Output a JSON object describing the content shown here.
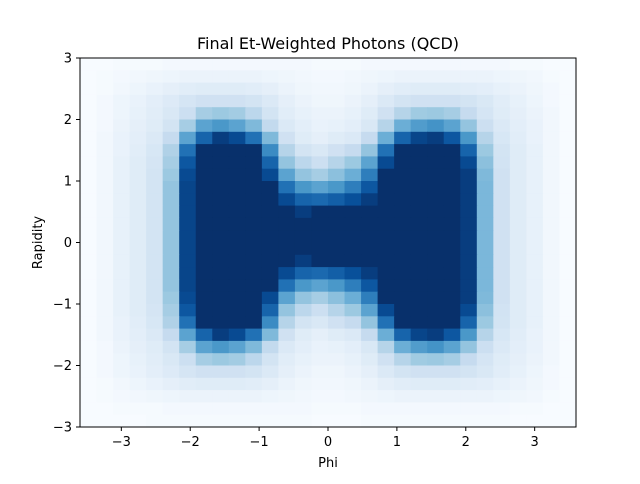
{
  "chart_data": {
    "type": "heatmap",
    "title": "Final Et-Weighted Photons (QCD)",
    "xlabel": "Phi",
    "ylabel": "Rapidity",
    "xlim": [
      -3.6,
      3.6
    ],
    "ylim": [
      -3,
      3
    ],
    "x_ticks": [
      -3,
      -2,
      -1,
      0,
      1,
      2,
      3
    ],
    "x_tick_labels": [
      "−3",
      "−2",
      "−1",
      "0",
      "1",
      "2",
      "3"
    ],
    "y_ticks": [
      -3,
      -2,
      -1,
      0,
      1,
      2,
      3
    ],
    "y_tick_labels": [
      "−3",
      "−2",
      "−1",
      "0",
      "1",
      "2",
      "3"
    ],
    "grid": false,
    "colormap": "Blues",
    "x_edges": [
      -3.6,
      -3.36,
      -3.12,
      -2.88,
      -2.64,
      -2.4,
      -2.16,
      -1.92,
      -1.68,
      -1.44,
      -1.2,
      -0.96,
      -0.72,
      -0.48,
      -0.24,
      0,
      0.24,
      0.48,
      0.72,
      0.96,
      1.2,
      1.44,
      1.68,
      1.92,
      2.16,
      2.4,
      2.64,
      2.88,
      3.12,
      3.36,
      3.6
    ],
    "y_edges": [
      -3,
      -2.8,
      -2.6,
      -2.4,
      -2.2,
      -2,
      -1.8,
      -1.6,
      -1.4,
      -1.2,
      -1,
      -0.8,
      -0.6,
      -0.4,
      -0.2,
      0,
      0.2,
      0.4,
      0.6,
      0.8,
      1,
      1.2,
      1.4,
      1.6,
      1.8,
      2,
      2.2,
      2.4,
      2.6,
      2.8,
      3
    ],
    "z_rows_top_to_bottom": [
      [
        0.0,
        0.0,
        0.01,
        0.01,
        0.01,
        0.02,
        0.02,
        0.02,
        0.02,
        0.02,
        0.02,
        0.02,
        0.02,
        0.02,
        0.01,
        0.01,
        0.01,
        0.02,
        0.02,
        0.02,
        0.02,
        0.02,
        0.02,
        0.02,
        0.02,
        0.02,
        0.01,
        0.01,
        0.0,
        0.0
      ],
      [
        0.0,
        0.01,
        0.02,
        0.03,
        0.04,
        0.05,
        0.06,
        0.06,
        0.06,
        0.06,
        0.06,
        0.05,
        0.04,
        0.03,
        0.02,
        0.02,
        0.03,
        0.04,
        0.05,
        0.06,
        0.06,
        0.06,
        0.06,
        0.06,
        0.06,
        0.05,
        0.04,
        0.03,
        0.01,
        0.0
      ],
      [
        0.0,
        0.01,
        0.03,
        0.05,
        0.07,
        0.09,
        0.11,
        0.12,
        0.12,
        0.12,
        0.11,
        0.09,
        0.06,
        0.04,
        0.03,
        0.03,
        0.04,
        0.06,
        0.09,
        0.11,
        0.12,
        0.12,
        0.12,
        0.11,
        0.1,
        0.08,
        0.06,
        0.04,
        0.02,
        0.0
      ],
      [
        0.0,
        0.02,
        0.05,
        0.07,
        0.1,
        0.13,
        0.17,
        0.2,
        0.2,
        0.2,
        0.18,
        0.14,
        0.09,
        0.06,
        0.04,
        0.04,
        0.06,
        0.09,
        0.14,
        0.18,
        0.2,
        0.2,
        0.2,
        0.18,
        0.15,
        0.11,
        0.08,
        0.05,
        0.02,
        0.0
      ],
      [
        0.0,
        0.02,
        0.05,
        0.08,
        0.11,
        0.15,
        0.22,
        0.35,
        0.38,
        0.36,
        0.28,
        0.18,
        0.11,
        0.08,
        0.06,
        0.06,
        0.08,
        0.12,
        0.2,
        0.3,
        0.37,
        0.38,
        0.35,
        0.25,
        0.17,
        0.12,
        0.09,
        0.06,
        0.03,
        0.0
      ],
      [
        0.0,
        0.02,
        0.06,
        0.09,
        0.12,
        0.18,
        0.35,
        0.55,
        0.6,
        0.55,
        0.45,
        0.26,
        0.14,
        0.1,
        0.07,
        0.08,
        0.1,
        0.15,
        0.3,
        0.5,
        0.58,
        0.62,
        0.55,
        0.4,
        0.22,
        0.14,
        0.1,
        0.07,
        0.03,
        0.0
      ],
      [
        0.0,
        0.03,
        0.07,
        0.1,
        0.14,
        0.25,
        0.55,
        0.8,
        0.95,
        0.9,
        0.75,
        0.45,
        0.2,
        0.12,
        0.09,
        0.12,
        0.14,
        0.25,
        0.5,
        0.8,
        0.92,
        0.95,
        0.85,
        0.6,
        0.3,
        0.16,
        0.11,
        0.07,
        0.03,
        0.0
      ],
      [
        0.0,
        0.03,
        0.07,
        0.11,
        0.16,
        0.32,
        0.75,
        1.0,
        1.0,
        1.0,
        1.0,
        0.65,
        0.3,
        0.18,
        0.15,
        0.2,
        0.25,
        0.4,
        0.75,
        1.0,
        1.0,
        1.0,
        1.0,
        0.8,
        0.38,
        0.18,
        0.12,
        0.08,
        0.03,
        0.0
      ],
      [
        0.0,
        0.03,
        0.08,
        0.12,
        0.17,
        0.35,
        0.85,
        1.0,
        1.0,
        1.0,
        1.0,
        0.8,
        0.4,
        0.28,
        0.22,
        0.3,
        0.38,
        0.55,
        0.9,
        1.0,
        1.0,
        1.0,
        1.0,
        0.9,
        0.42,
        0.19,
        0.12,
        0.08,
        0.03,
        0.0
      ],
      [
        0.0,
        0.03,
        0.08,
        0.12,
        0.18,
        0.38,
        0.9,
        1.0,
        1.0,
        1.0,
        1.0,
        0.9,
        0.55,
        0.4,
        0.35,
        0.42,
        0.5,
        0.7,
        1.0,
        1.0,
        1.0,
        1.0,
        1.0,
        0.95,
        0.45,
        0.2,
        0.12,
        0.08,
        0.03,
        0.0
      ],
      [
        0.0,
        0.03,
        0.08,
        0.12,
        0.18,
        0.4,
        0.92,
        1.0,
        1.0,
        1.0,
        1.0,
        1.0,
        0.75,
        0.6,
        0.55,
        0.6,
        0.7,
        0.85,
        1.0,
        1.0,
        1.0,
        1.0,
        1.0,
        0.95,
        0.46,
        0.2,
        0.12,
        0.08,
        0.03,
        0.0
      ],
      [
        0.0,
        0.03,
        0.08,
        0.12,
        0.18,
        0.4,
        0.92,
        1.0,
        1.0,
        1.0,
        1.0,
        1.0,
        0.9,
        0.8,
        0.78,
        0.82,
        0.88,
        0.95,
        1.0,
        1.0,
        1.0,
        1.0,
        1.0,
        0.95,
        0.46,
        0.2,
        0.12,
        0.08,
        0.03,
        0.0
      ],
      [
        0.0,
        0.03,
        0.08,
        0.12,
        0.18,
        0.4,
        0.92,
        1.0,
        1.0,
        1.0,
        1.0,
        1.0,
        1.0,
        0.95,
        1.0,
        1.0,
        1.0,
        1.0,
        1.0,
        1.0,
        1.0,
        1.0,
        1.0,
        0.95,
        0.46,
        0.2,
        0.12,
        0.08,
        0.03,
        0.0
      ],
      [
        0.0,
        0.03,
        0.08,
        0.12,
        0.18,
        0.4,
        0.92,
        1.0,
        1.0,
        1.0,
        1.0,
        1.0,
        1.0,
        1.0,
        1.0,
        1.0,
        1.0,
        1.0,
        1.0,
        1.0,
        1.0,
        1.0,
        1.0,
        0.95,
        0.46,
        0.2,
        0.12,
        0.08,
        0.03,
        0.0
      ],
      [
        0.0,
        0.03,
        0.08,
        0.12,
        0.18,
        0.4,
        0.92,
        1.0,
        1.0,
        1.0,
        1.0,
        1.0,
        1.0,
        1.0,
        1.0,
        1.0,
        1.0,
        1.0,
        1.0,
        1.0,
        1.0,
        1.0,
        1.0,
        0.95,
        0.46,
        0.2,
        0.12,
        0.08,
        0.03,
        0.0
      ],
      [
        0.0,
        0.03,
        0.08,
        0.12,
        0.18,
        0.4,
        0.92,
        1.0,
        1.0,
        1.0,
        1.0,
        1.0,
        1.0,
        1.0,
        1.0,
        1.0,
        1.0,
        1.0,
        1.0,
        1.0,
        1.0,
        1.0,
        1.0,
        0.95,
        0.46,
        0.2,
        0.12,
        0.08,
        0.03,
        0.0
      ],
      [
        0.0,
        0.03,
        0.08,
        0.12,
        0.18,
        0.4,
        0.92,
        1.0,
        1.0,
        1.0,
        1.0,
        1.0,
        1.0,
        0.95,
        1.0,
        1.0,
        1.0,
        1.0,
        1.0,
        1.0,
        1.0,
        1.0,
        1.0,
        0.95,
        0.46,
        0.2,
        0.12,
        0.08,
        0.03,
        0.0
      ],
      [
        0.0,
        0.03,
        0.08,
        0.12,
        0.18,
        0.4,
        0.92,
        1.0,
        1.0,
        1.0,
        1.0,
        1.0,
        0.9,
        0.8,
        0.78,
        0.82,
        0.88,
        0.95,
        1.0,
        1.0,
        1.0,
        1.0,
        1.0,
        0.95,
        0.46,
        0.2,
        0.12,
        0.08,
        0.03,
        0.0
      ],
      [
        0.0,
        0.03,
        0.08,
        0.12,
        0.18,
        0.4,
        0.92,
        1.0,
        1.0,
        1.0,
        1.0,
        1.0,
        0.75,
        0.6,
        0.55,
        0.6,
        0.7,
        0.85,
        1.0,
        1.0,
        1.0,
        1.0,
        1.0,
        0.95,
        0.46,
        0.2,
        0.12,
        0.08,
        0.03,
        0.0
      ],
      [
        0.0,
        0.03,
        0.08,
        0.12,
        0.18,
        0.38,
        0.9,
        1.0,
        1.0,
        1.0,
        1.0,
        0.9,
        0.55,
        0.4,
        0.35,
        0.42,
        0.5,
        0.7,
        1.0,
        1.0,
        1.0,
        1.0,
        1.0,
        0.95,
        0.45,
        0.2,
        0.12,
        0.08,
        0.03,
        0.0
      ],
      [
        0.0,
        0.03,
        0.08,
        0.12,
        0.17,
        0.35,
        0.85,
        1.0,
        1.0,
        1.0,
        1.0,
        0.8,
        0.4,
        0.28,
        0.22,
        0.3,
        0.38,
        0.55,
        0.9,
        1.0,
        1.0,
        1.0,
        1.0,
        0.9,
        0.42,
        0.19,
        0.12,
        0.08,
        0.03,
        0.0
      ],
      [
        0.0,
        0.03,
        0.07,
        0.11,
        0.16,
        0.32,
        0.75,
        1.0,
        1.0,
        1.0,
        1.0,
        0.65,
        0.3,
        0.18,
        0.15,
        0.2,
        0.25,
        0.4,
        0.75,
        1.0,
        1.0,
        1.0,
        1.0,
        0.8,
        0.38,
        0.18,
        0.12,
        0.08,
        0.03,
        0.0
      ],
      [
        0.0,
        0.03,
        0.07,
        0.1,
        0.14,
        0.25,
        0.55,
        0.8,
        0.95,
        0.9,
        0.75,
        0.45,
        0.2,
        0.12,
        0.09,
        0.12,
        0.14,
        0.25,
        0.5,
        0.8,
        0.92,
        0.95,
        0.85,
        0.6,
        0.3,
        0.16,
        0.11,
        0.07,
        0.03,
        0.0
      ],
      [
        0.0,
        0.02,
        0.06,
        0.09,
        0.12,
        0.18,
        0.35,
        0.55,
        0.6,
        0.55,
        0.45,
        0.26,
        0.14,
        0.1,
        0.07,
        0.08,
        0.1,
        0.15,
        0.3,
        0.5,
        0.58,
        0.62,
        0.55,
        0.4,
        0.22,
        0.14,
        0.1,
        0.07,
        0.03,
        0.0
      ],
      [
        0.0,
        0.02,
        0.05,
        0.08,
        0.11,
        0.15,
        0.22,
        0.35,
        0.38,
        0.36,
        0.28,
        0.18,
        0.11,
        0.08,
        0.06,
        0.06,
        0.08,
        0.12,
        0.2,
        0.3,
        0.37,
        0.38,
        0.35,
        0.25,
        0.17,
        0.12,
        0.09,
        0.06,
        0.03,
        0.0
      ],
      [
        0.0,
        0.02,
        0.05,
        0.07,
        0.1,
        0.13,
        0.17,
        0.2,
        0.2,
        0.2,
        0.18,
        0.14,
        0.09,
        0.06,
        0.04,
        0.04,
        0.06,
        0.09,
        0.14,
        0.18,
        0.2,
        0.2,
        0.2,
        0.18,
        0.15,
        0.11,
        0.08,
        0.05,
        0.02,
        0.0
      ],
      [
        0.0,
        0.01,
        0.03,
        0.05,
        0.07,
        0.09,
        0.11,
        0.12,
        0.12,
        0.12,
        0.11,
        0.09,
        0.06,
        0.04,
        0.03,
        0.03,
        0.04,
        0.06,
        0.09,
        0.11,
        0.12,
        0.12,
        0.12,
        0.11,
        0.1,
        0.08,
        0.06,
        0.04,
        0.02,
        0.0
      ],
      [
        0.0,
        0.01,
        0.02,
        0.03,
        0.04,
        0.05,
        0.06,
        0.06,
        0.06,
        0.06,
        0.06,
        0.05,
        0.04,
        0.03,
        0.02,
        0.02,
        0.03,
        0.04,
        0.05,
        0.06,
        0.06,
        0.06,
        0.06,
        0.06,
        0.06,
        0.05,
        0.04,
        0.03,
        0.01,
        0.0
      ],
      [
        0.0,
        0.0,
        0.01,
        0.01,
        0.01,
        0.02,
        0.02,
        0.02,
        0.02,
        0.02,
        0.02,
        0.02,
        0.02,
        0.02,
        0.01,
        0.01,
        0.01,
        0.02,
        0.02,
        0.02,
        0.02,
        0.02,
        0.02,
        0.02,
        0.02,
        0.02,
        0.01,
        0.01,
        0.0,
        0.0
      ],
      [
        0.0,
        0.0,
        0.0,
        0.0,
        0.01,
        0.01,
        0.01,
        0.01,
        0.01,
        0.01,
        0.01,
        0.01,
        0.01,
        0.01,
        0.0,
        0.0,
        0.0,
        0.01,
        0.01,
        0.01,
        0.01,
        0.01,
        0.01,
        0.01,
        0.01,
        0.01,
        0.0,
        0.0,
        0.0,
        0.0
      ]
    ]
  }
}
